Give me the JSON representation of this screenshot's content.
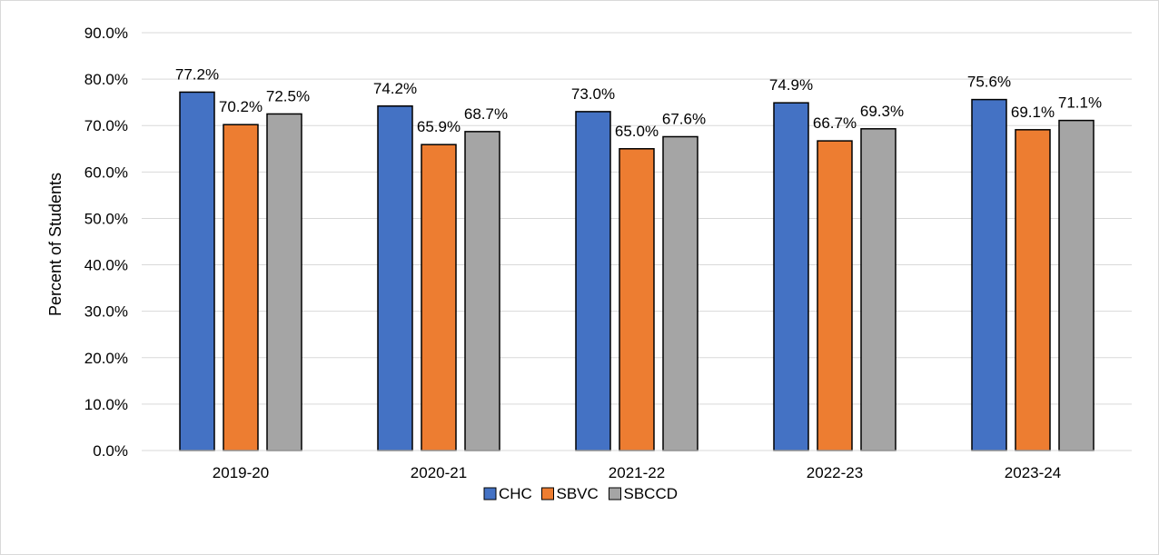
{
  "chart_data": {
    "type": "bar",
    "title": "",
    "xlabel": "",
    "ylabel": "Percent of Students",
    "ylim": [
      0,
      90
    ],
    "ytick_step": 10,
    "ytick_labels": [
      "0.0%",
      "10.0%",
      "20.0%",
      "30.0%",
      "40.0%",
      "50.0%",
      "60.0%",
      "70.0%",
      "80.0%",
      "90.0%"
    ],
    "grid": true,
    "legend_position": "bottom",
    "categories": [
      "2019-20",
      "2020-21",
      "2021-22",
      "2022-23",
      "2023-24"
    ],
    "series": [
      {
        "name": "CHC",
        "color": "#4472c4",
        "values": [
          77.2,
          74.2,
          73.0,
          74.9,
          75.6
        ],
        "labels": [
          "77.2%",
          "74.2%",
          "73.0%",
          "74.9%",
          "75.6%"
        ]
      },
      {
        "name": "SBVC",
        "color": "#ed7d31",
        "values": [
          70.2,
          65.9,
          65.0,
          66.7,
          69.1
        ],
        "labels": [
          "70.2%",
          "65.9%",
          "65.0%",
          "66.7%",
          "69.1%"
        ]
      },
      {
        "name": "SBCCD",
        "color": "#a5a5a5",
        "values": [
          72.5,
          68.7,
          67.6,
          69.3,
          71.1
        ],
        "labels": [
          "72.5%",
          "68.7%",
          "67.6%",
          "69.3%",
          "71.1%"
        ]
      }
    ]
  }
}
